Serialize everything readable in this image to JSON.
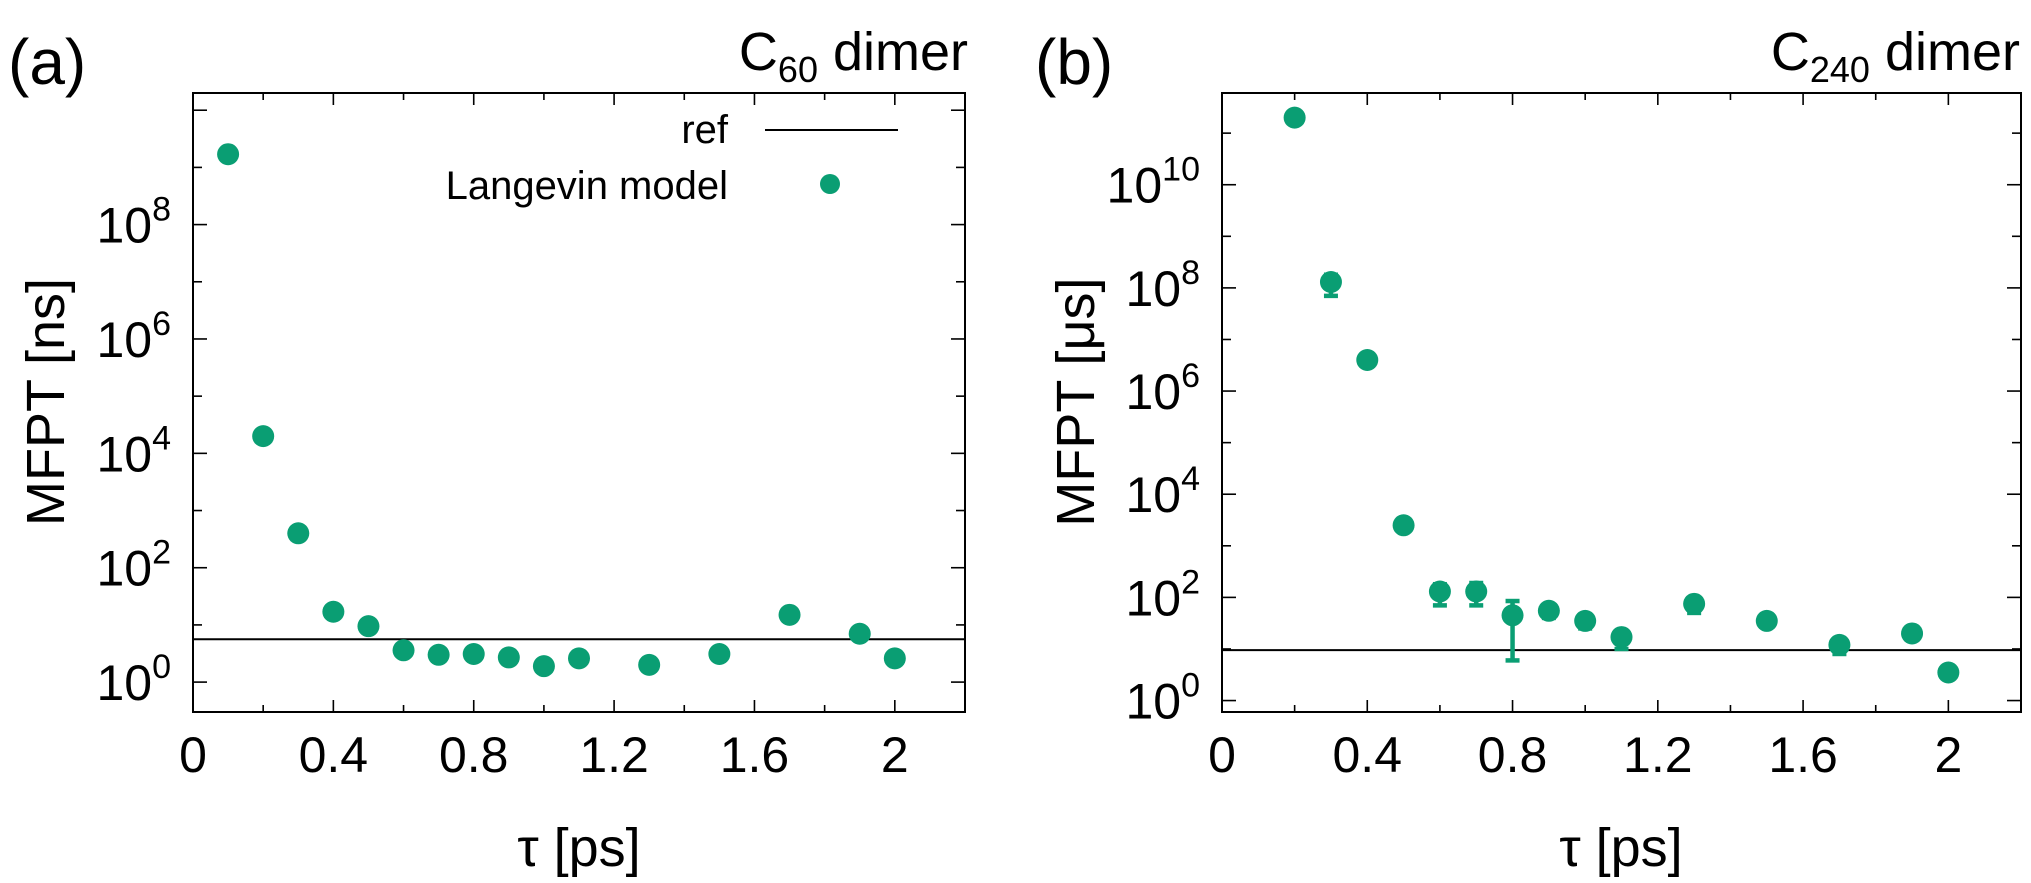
{
  "chart_data": [
    {
      "type": "scatter",
      "panel_label": "(a)",
      "title": "C",
      "title_subscript": "60",
      "title_suffix": " dimer",
      "xlabel": "τ [ps]",
      "ylabel": "MFPT [ns]",
      "xlim": [
        0,
        2.2
      ],
      "ylim": [
        0.3,
        20000000000
      ],
      "yscale": "log",
      "x_ticks": [
        {
          "value": 0,
          "label": "0"
        },
        {
          "value": 0.4,
          "label": "0.4"
        },
        {
          "value": 0.8,
          "label": "0.8"
        },
        {
          "value": 1.2,
          "label": "1.2"
        },
        {
          "value": 1.6,
          "label": "1.6"
        },
        {
          "value": 2,
          "label": "2"
        }
      ],
      "y_ticks": [
        {
          "value": 1,
          "base": "10",
          "exp": "0"
        },
        {
          "value": 100,
          "base": "10",
          "exp": "2"
        },
        {
          "value": 10000,
          "base": "10",
          "exp": "4"
        },
        {
          "value": 1000000,
          "base": "10",
          "exp": "6"
        },
        {
          "value": 100000000,
          "base": "10",
          "exp": "8"
        }
      ],
      "ref": 5.6,
      "legend": {
        "position": "top-right",
        "ref_label": "ref",
        "series_label": "Langevin model"
      },
      "series": [
        {
          "name": "Langevin model",
          "color": "#0a9e73",
          "x": [
            0.1,
            0.2,
            0.3,
            0.4,
            0.5,
            0.6,
            0.7,
            0.8,
            0.9,
            1.0,
            1.1,
            1.3,
            1.5,
            1.7,
            1.9,
            2.0
          ],
          "y": [
            1700000000,
            20000,
            400,
            17,
            9.5,
            3.6,
            3.0,
            3.1,
            2.7,
            1.9,
            2.6,
            2.0,
            3.1,
            15,
            7.0,
            2.6
          ]
        }
      ]
    },
    {
      "type": "scatter",
      "panel_label": "(b)",
      "title": "C",
      "title_subscript": "240",
      "title_suffix": " dimer",
      "xlabel": "τ [ps]",
      "ylabel": "MFPT [μs]",
      "xlim": [
        0,
        2.2
      ],
      "ylim": [
        0.6,
        600000000000
      ],
      "yscale": "log",
      "x_ticks": [
        {
          "value": 0,
          "label": "0"
        },
        {
          "value": 0.4,
          "label": "0.4"
        },
        {
          "value": 0.8,
          "label": "0.8"
        },
        {
          "value": 1.2,
          "label": "1.2"
        },
        {
          "value": 1.6,
          "label": "1.6"
        },
        {
          "value": 2,
          "label": "2"
        }
      ],
      "y_ticks": [
        {
          "value": 1,
          "base": "10",
          "exp": "0"
        },
        {
          "value": 100,
          "base": "10",
          "exp": "2"
        },
        {
          "value": 10000,
          "base": "10",
          "exp": "4"
        },
        {
          "value": 1000000,
          "base": "10",
          "exp": "6"
        },
        {
          "value": 100000000,
          "base": "10",
          "exp": "8"
        },
        {
          "value": 10000000000,
          "base": "10",
          "exp": "10"
        }
      ],
      "ref": 9.5,
      "series": [
        {
          "name": "Langevin model",
          "color": "#0a9e73",
          "x": [
            0.2,
            0.3,
            0.4,
            0.5,
            0.6,
            0.7,
            0.8,
            0.9,
            1.0,
            1.1,
            1.3,
            1.5,
            1.7,
            1.9,
            2.0
          ],
          "y": [
            200000000000,
            130000000,
            4000000,
            2500,
            130,
            130,
            45,
            55,
            35,
            17,
            75,
            35,
            12,
            20,
            3.5
          ],
          "err_low": [
            200000000000,
            70000000,
            4000000,
            2500,
            70,
            70,
            6,
            40,
            25,
            10,
            50,
            30,
            8,
            20,
            3.5
          ],
          "err_high": [
            200000000000,
            180000000,
            4000000,
            2500,
            180,
            190,
            85,
            65,
            45,
            22,
            95,
            40,
            15,
            20,
            3.5
          ]
        }
      ]
    }
  ]
}
